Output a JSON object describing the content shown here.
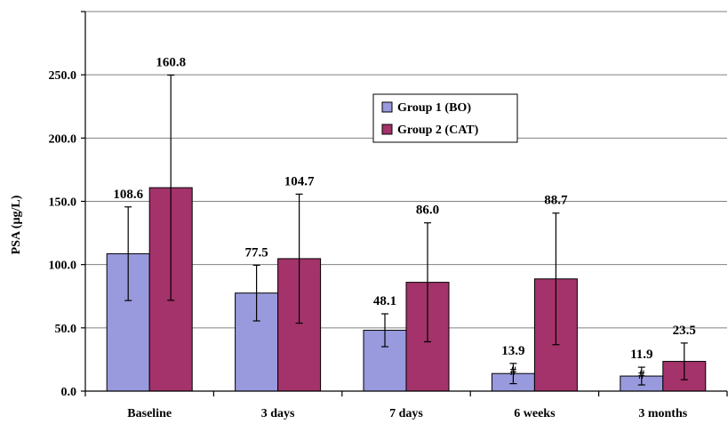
{
  "chart_data": {
    "type": "bar",
    "ylabel": "PSA (µg/L)",
    "ylim": [
      0,
      300
    ],
    "yticks": [
      "0.0",
      "50.0",
      "100.0",
      "150.0",
      "200.0",
      "250.0"
    ],
    "grid": true,
    "legend_position": "top-center",
    "categories": [
      "Baseline",
      "3 days",
      "7 days",
      "6 weeks",
      "3 months"
    ],
    "series": [
      {
        "name": "Group 1 (BO)",
        "color": "#9999dd",
        "values": [
          108.6,
          77.5,
          48.1,
          13.9,
          11.9
        ],
        "error": [
          37,
          22,
          13,
          8,
          7
        ],
        "labels": [
          "108.6",
          "77.5",
          "48.1",
          "13.9",
          "11.9"
        ]
      },
      {
        "name": "Group 2 (CAT)",
        "color": "#a3336a",
        "values": [
          160.8,
          104.7,
          86.0,
          88.7,
          23.5
        ],
        "error": [
          89,
          51,
          47,
          52,
          14.5
        ],
        "labels": [
          "160.8",
          "104.7",
          "86.0",
          "88.7",
          "23.5"
        ]
      }
    ],
    "annotations": [
      {
        "category": "6 weeks",
        "series": "Group 1 (BO)",
        "text": "#"
      },
      {
        "category": "3 months",
        "series": "Group 1 (BO)",
        "text": "#"
      }
    ]
  }
}
